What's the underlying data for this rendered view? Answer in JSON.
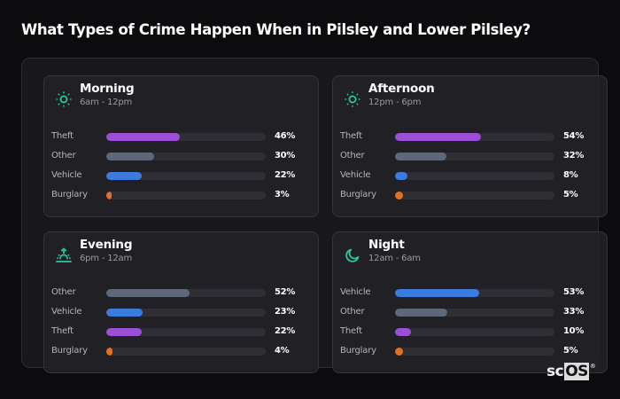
{
  "page": {
    "title": "What Types of Crime Happen When in Pilsley and Lower Pilsley?"
  },
  "colors": {
    "accent_icon": "#2ec4a0",
    "theft": "#9b4fd6",
    "other": "#5f6878",
    "vehicle": "#3a7bdc",
    "burglary": "#e07028",
    "track": "#2e2e34"
  },
  "cards": [
    {
      "name": "Morning",
      "range": "6am - 12pm",
      "icon": "sun-icon",
      "rows": [
        {
          "label": "Theft",
          "value": "46%",
          "pct": 46,
          "key": "theft"
        },
        {
          "label": "Other",
          "value": "30%",
          "pct": 30,
          "key": "other"
        },
        {
          "label": "Vehicle",
          "value": "22%",
          "pct": 22,
          "key": "vehicle"
        },
        {
          "label": "Burglary",
          "value": "3%",
          "pct": 3,
          "key": "burglary"
        }
      ]
    },
    {
      "name": "Afternoon",
      "range": "12pm - 6pm",
      "icon": "sun-icon",
      "rows": [
        {
          "label": "Theft",
          "value": "54%",
          "pct": 54,
          "key": "theft"
        },
        {
          "label": "Other",
          "value": "32%",
          "pct": 32,
          "key": "other"
        },
        {
          "label": "Vehicle",
          "value": "8%",
          "pct": 8,
          "key": "vehicle"
        },
        {
          "label": "Burglary",
          "value": "5%",
          "pct": 5,
          "key": "burglary"
        }
      ]
    },
    {
      "name": "Evening",
      "range": "6pm - 12am",
      "icon": "sunset-icon",
      "rows": [
        {
          "label": "Other",
          "value": "52%",
          "pct": 52,
          "key": "other"
        },
        {
          "label": "Vehicle",
          "value": "23%",
          "pct": 23,
          "key": "vehicle"
        },
        {
          "label": "Theft",
          "value": "22%",
          "pct": 22,
          "key": "theft"
        },
        {
          "label": "Burglary",
          "value": "4%",
          "pct": 4,
          "key": "burglary"
        }
      ]
    },
    {
      "name": "Night",
      "range": "12am - 6am",
      "icon": "moon-icon",
      "rows": [
        {
          "label": "Vehicle",
          "value": "53%",
          "pct": 53,
          "key": "vehicle"
        },
        {
          "label": "Other",
          "value": "33%",
          "pct": 33,
          "key": "other"
        },
        {
          "label": "Theft",
          "value": "10%",
          "pct": 10,
          "key": "theft"
        },
        {
          "label": "Burglary",
          "value": "5%",
          "pct": 5,
          "key": "burglary"
        }
      ]
    }
  ],
  "watermark": {
    "sc": "sc",
    "os": "OS",
    "reg": "®"
  },
  "chart_data": {
    "type": "bar",
    "title": "What Types of Crime Happen When in Pilsley and Lower Pilsley?",
    "orientation": "horizontal",
    "unit": "%",
    "xlim": [
      0,
      100
    ],
    "grid": false,
    "panels": [
      {
        "title": "Morning",
        "subtitle": "6am - 12pm",
        "categories": [
          "Theft",
          "Other",
          "Vehicle",
          "Burglary"
        ],
        "values": [
          46,
          30,
          22,
          3
        ]
      },
      {
        "title": "Afternoon",
        "subtitle": "12pm - 6pm",
        "categories": [
          "Theft",
          "Other",
          "Vehicle",
          "Burglary"
        ],
        "values": [
          54,
          32,
          8,
          5
        ]
      },
      {
        "title": "Evening",
        "subtitle": "6pm - 12am",
        "categories": [
          "Other",
          "Vehicle",
          "Theft",
          "Burglary"
        ],
        "values": [
          52,
          23,
          22,
          4
        ]
      },
      {
        "title": "Night",
        "subtitle": "12am - 6am",
        "categories": [
          "Vehicle",
          "Other",
          "Theft",
          "Burglary"
        ],
        "values": [
          53,
          33,
          10,
          5
        ]
      }
    ],
    "category_colors": {
      "Theft": "#9b4fd6",
      "Other": "#5f6878",
      "Vehicle": "#3a7bdc",
      "Burglary": "#e07028"
    }
  }
}
